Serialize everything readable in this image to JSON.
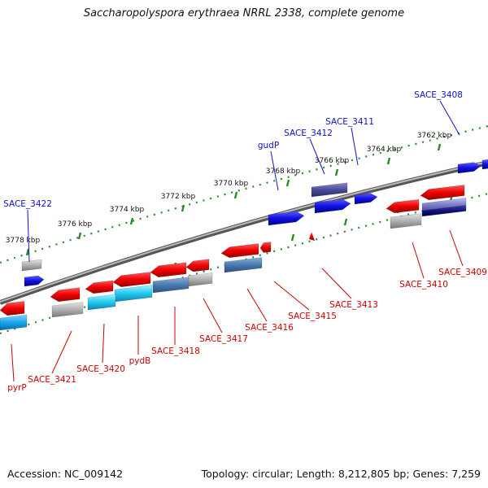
{
  "title": "Saccharopolyspora erythraea NRRL 2338, complete genome",
  "footer": {
    "accession": "Accession: NC_009142",
    "summary": "Topology: circular; Length: 8,212,805 bp; Genes: 7,259"
  },
  "colors": {
    "forward_label": "#1010c8",
    "reverse_label": "#cc0000",
    "backbone": "#888888",
    "ticks": "#2a8a2a"
  },
  "ticks": [
    {
      "label": "3762 kbp"
    },
    {
      "label": "3764 kbp"
    },
    {
      "label": "3766 kbp"
    },
    {
      "label": "3768 kbp"
    },
    {
      "label": "3770 kbp"
    },
    {
      "label": "3772 kbp"
    },
    {
      "label": "3774 kbp"
    },
    {
      "label": "3776 kbp"
    },
    {
      "label": "3778 kbp"
    }
  ],
  "forward_labels": [
    "SACE_3408",
    "SACE_3411",
    "SACE_3412",
    "gudP",
    "SACE_3422"
  ],
  "reverse_labels": [
    "SACE_3409",
    "SACE_3410",
    "SACE_3413",
    "SACE_3415",
    "SACE_3416",
    "SACE_3417",
    "SACE_3418",
    "pydB",
    "SACE_3420",
    "SACE_3421",
    "pyrP"
  ]
}
